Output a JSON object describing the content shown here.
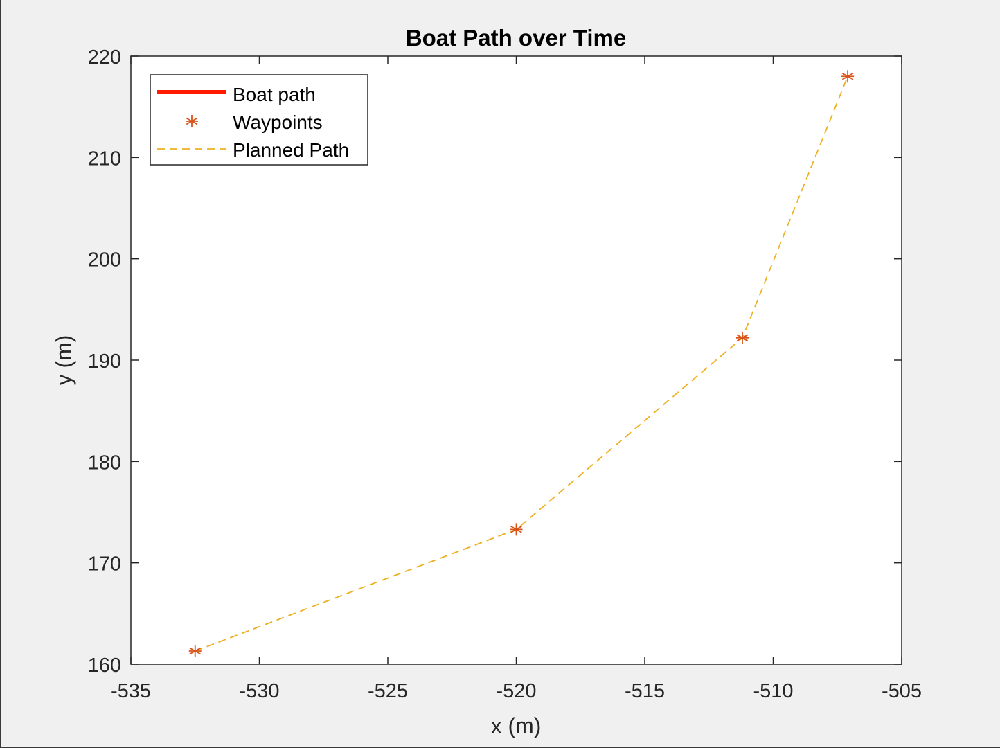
{
  "chart_data": {
    "type": "line",
    "title": "Boat Path over Time",
    "xlabel": "x (m)",
    "ylabel": "y (m)",
    "xlim": [
      -535,
      -505
    ],
    "ylim": [
      160,
      220
    ],
    "xticks": [
      -535,
      -530,
      -525,
      -520,
      -515,
      -510,
      -505
    ],
    "yticks": [
      160,
      170,
      180,
      190,
      200,
      210,
      220
    ],
    "xtick_labels": [
      "-535",
      "-530",
      "-525",
      "-520",
      "-515",
      "-510",
      "-505"
    ],
    "ytick_labels": [
      "160",
      "170",
      "180",
      "190",
      "200",
      "210",
      "220"
    ],
    "grid": false,
    "legend_position": "top-left",
    "series": [
      {
        "name": "Boat path",
        "style": "solid",
        "color": "#ff1a00",
        "x": [],
        "y": []
      },
      {
        "name": "Waypoints",
        "style": "asterisk-markers",
        "color": "#d95319",
        "x": [
          -532.5,
          -520.0,
          -511.2,
          -507.1
        ],
        "y": [
          161.3,
          173.3,
          192.2,
          218.0
        ]
      },
      {
        "name": "Planned Path",
        "style": "dashed",
        "color": "#edb120",
        "x": [
          -532.5,
          -520.0,
          -511.2,
          -507.1
        ],
        "y": [
          161.3,
          173.3,
          192.2,
          218.0
        ]
      }
    ]
  }
}
